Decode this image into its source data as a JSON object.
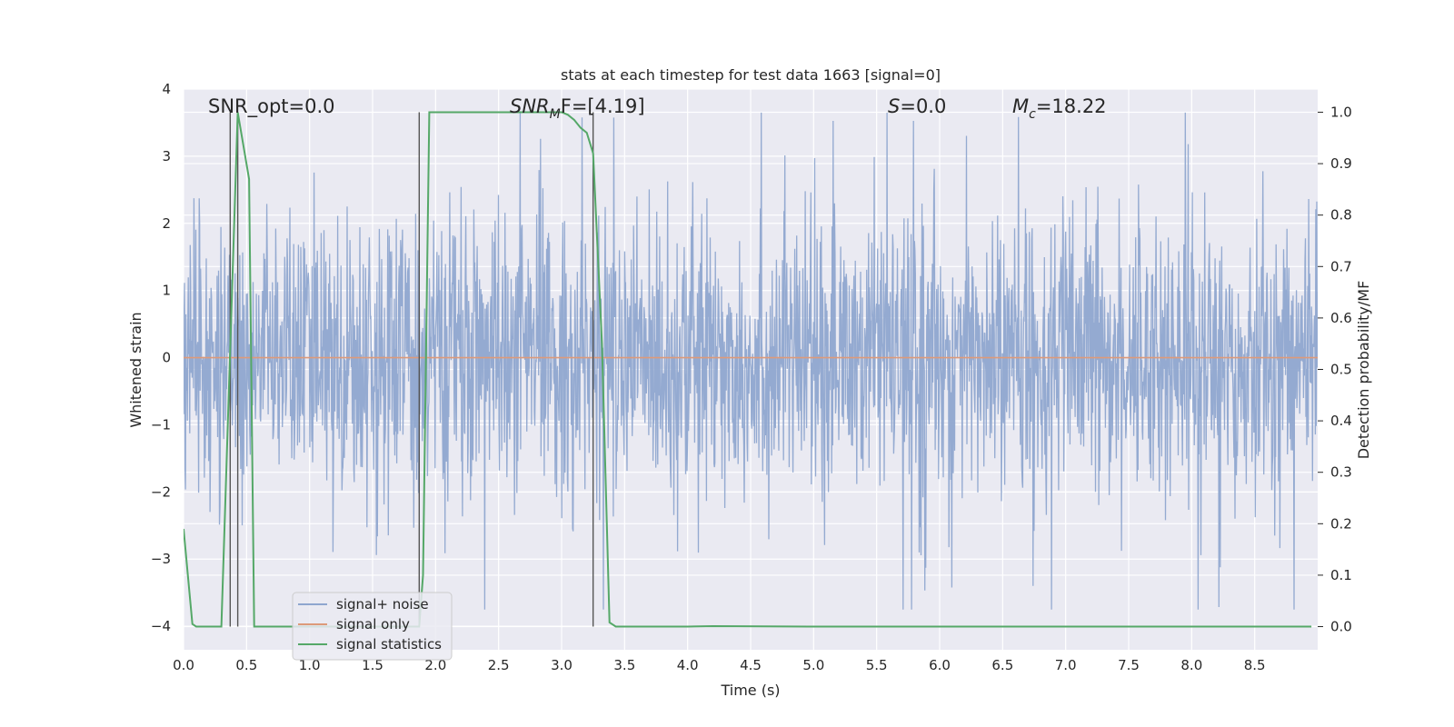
{
  "chart_data": {
    "type": "line",
    "title": "stats at each timestep for test data 1663 [signal=0]",
    "xlabel": "Time (s)",
    "ylabel": "Whitened strain",
    "y2label": "Detection probability/MF",
    "xlim": [
      0,
      9.0
    ],
    "ylim": [
      -4.35,
      4.0
    ],
    "y2lim": [
      -0.045,
      1.045
    ],
    "x_ticks": [
      "0.0",
      "0.5",
      "1.0",
      "1.5",
      "2.0",
      "2.5",
      "3.0",
      "3.5",
      "4.0",
      "4.5",
      "5.0",
      "5.5",
      "6.0",
      "6.5",
      "7.0",
      "7.5",
      "8.0",
      "8.5"
    ],
    "y_ticks": [
      "4",
      "3",
      "2",
      "1",
      "0",
      "−1",
      "−2",
      "−3",
      "−4"
    ],
    "y2_ticks": [
      "1.0",
      "0.9",
      "0.8",
      "0.7",
      "0.6",
      "0.5",
      "0.4",
      "0.3",
      "0.2",
      "0.1",
      "0.0"
    ],
    "grid": true,
    "legend_position": "lower-left",
    "annotations": {
      "snr_opt": "SNR_opt=0.0",
      "snr_mf_main": "SNR",
      "snr_mf_sub": "M",
      "snr_mf_rest": "F=[4.19]",
      "s_main": "S",
      "s_rest": "=0.0",
      "mc_main": "M",
      "mc_sub": "c",
      "mc_rest": "=18.22"
    },
    "vertical_lines_x": [
      0.37,
      0.43,
      1.87,
      3.25
    ],
    "series": [
      {
        "name": "signal+ noise",
        "color": "#8fa6cf",
        "axis": "left",
        "noise": {
          "core_std": 1.0,
          "min": -3.75,
          "max": 3.65,
          "samples": 2400
        }
      },
      {
        "name": "signal only",
        "color": "#dd9a7a",
        "axis": "left",
        "x": [
          0,
          9.0
        ],
        "y": [
          0,
          0
        ]
      },
      {
        "name": "signal statistics",
        "color": "#55a868",
        "axis": "right",
        "x": [
          0.0,
          0.07,
          0.1,
          0.3,
          0.43,
          0.52,
          0.56,
          0.87,
          1.87,
          1.9,
          1.95,
          2.0,
          2.5,
          3.0,
          3.05,
          3.1,
          3.15,
          3.2,
          3.25,
          3.32,
          3.38,
          3.43,
          4.0,
          4.2,
          5.0,
          6.0,
          7.0,
          8.0,
          8.95
        ],
        "y": [
          0.19,
          0.005,
          0.0,
          0.0,
          1.0,
          0.87,
          0.0,
          0.0,
          0.0,
          0.1,
          1.0,
          1.0,
          1.0,
          1.0,
          0.995,
          0.985,
          0.97,
          0.96,
          0.92,
          0.55,
          0.008,
          0.0,
          0.0,
          0.001,
          0.0,
          0.0,
          0.0,
          0.0,
          0.0
        ]
      }
    ]
  }
}
